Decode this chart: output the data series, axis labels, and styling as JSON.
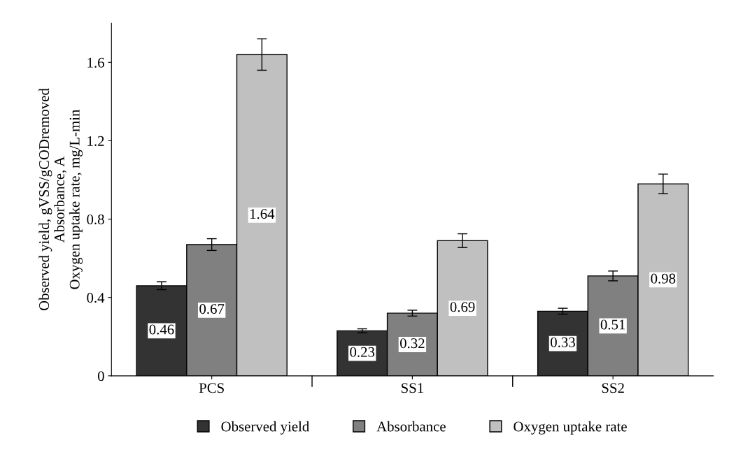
{
  "chart_data": {
    "type": "bar",
    "ylabel": "Observed yield, gVSS/gCODremoved\nAbsorbance, A\nOxygen uptake rate, mg/L-min",
    "categories": [
      "PCS",
      "SS1",
      "SS2"
    ],
    "series": [
      {
        "name": "Observed yield",
        "color": "#333333",
        "values": [
          0.46,
          0.23,
          0.33
        ],
        "errors": [
          0.02,
          0.01,
          0.015
        ]
      },
      {
        "name": "Absorbance",
        "color": "#808080",
        "values": [
          0.67,
          0.32,
          0.51
        ],
        "errors": [
          0.03,
          0.015,
          0.025
        ]
      },
      {
        "name": "Oxygen uptake rate",
        "color": "#c0c0c0",
        "values": [
          1.64,
          0.69,
          0.98
        ],
        "errors": [
          0.08,
          0.035,
          0.05
        ]
      }
    ],
    "ylim": [
      0,
      1.8
    ],
    "yticks": [
      0,
      0.4,
      0.8,
      1.2,
      1.6
    ],
    "data_labels": true,
    "legend": "bottom",
    "grid": false
  }
}
